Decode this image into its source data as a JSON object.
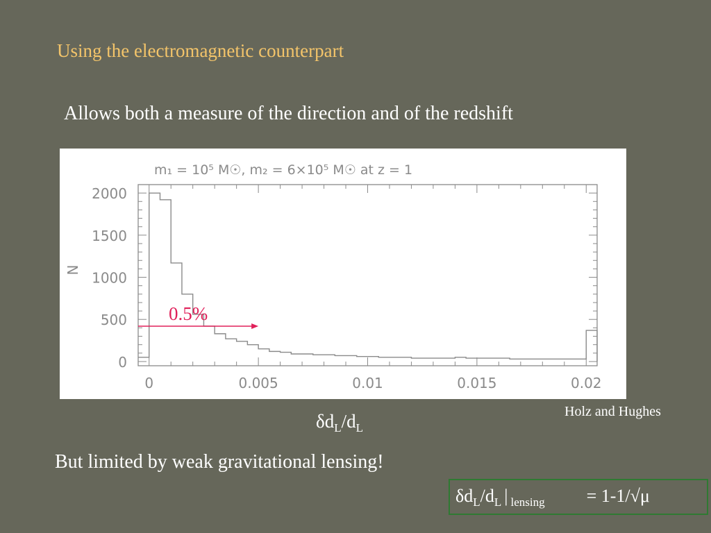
{
  "slide": {
    "title": "Using the electromagnetic counterpart",
    "subtitle": "Allows both a measure of the direction and of the redshift",
    "credit": "Holz and Hughes",
    "xlabel_symbol": "δd",
    "xlabel_sub1": "L",
    "xlabel_mid": "/d",
    "xlabel_sub2": "L",
    "lensing_note": "But limited by weak gravitational lensing!",
    "formula": {
      "lhs_a": "δd",
      "sub1": "L",
      "lhs_b": "/d",
      "sub2": "L",
      "bar": "|",
      "sub3": "lensing",
      "rhs": "= 1-1/√μ"
    }
  },
  "chart_data": {
    "type": "bar",
    "title": "m₁ = 10⁵ M☉, m₂ = 6×10⁵ M☉ at z = 1",
    "xlabel": "δdL/dL",
    "ylabel": "N",
    "xlim": [
      -0.0005,
      0.0205
    ],
    "ylim": [
      -50,
      2100
    ],
    "xticks": [
      "0",
      "0.005",
      "0.01",
      "0.015",
      "0.02"
    ],
    "yticks": [
      "0",
      "500",
      "1000",
      "1500",
      "2000"
    ],
    "bin_width": 0.0005,
    "bins_start": [
      -0.0005,
      0,
      0.0005,
      0.001,
      0.0015,
      0.002,
      0.0025,
      0.003,
      0.0035,
      0.004,
      0.0045,
      0.005,
      0.0055,
      0.006,
      0.0065,
      0.007,
      0.0075,
      0.008,
      0.0085,
      0.009,
      0.0095,
      0.01,
      0.0105,
      0.011,
      0.0115,
      0.012,
      0.0125,
      0.013,
      0.0135,
      0.014,
      0.0145,
      0.015,
      0.0155,
      0.016,
      0.0165,
      0.017,
      0.0175,
      0.018,
      0.0185,
      0.019,
      0.0195,
      0.02
    ],
    "values": [
      50,
      2000,
      1920,
      1170,
      800,
      560,
      420,
      330,
      270,
      240,
      200,
      150,
      120,
      110,
      90,
      90,
      80,
      80,
      70,
      70,
      60,
      60,
      50,
      50,
      50,
      40,
      40,
      40,
      40,
      50,
      40,
      40,
      40,
      40,
      30,
      30,
      30,
      30,
      30,
      30,
      30,
      370
    ],
    "grid": false,
    "annotation": {
      "text": "0.5%",
      "arrow_from_x": -0.0005,
      "arrow_to_x": 0.005,
      "arrow_y": 420,
      "color": "#e0205a"
    },
    "line_color": "#8a8a8a"
  }
}
